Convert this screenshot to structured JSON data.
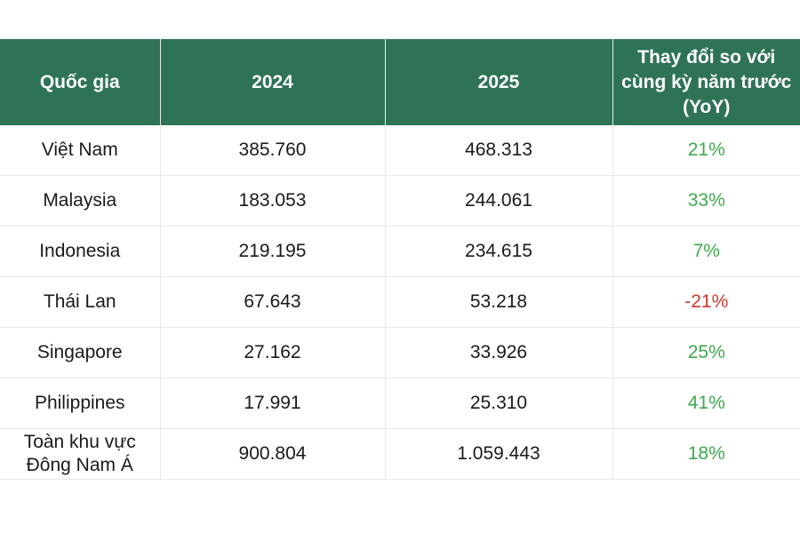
{
  "table": {
    "headers": {
      "country": "Quốc gia",
      "y2024": "2024",
      "y2025": "2025",
      "yoy": "Thay đổi so với cùng kỳ năm trước (YoY)"
    },
    "rows": [
      {
        "country": "Việt Nam",
        "v2024": "385.760",
        "v2025": "468.313",
        "yoy": "21%"
      },
      {
        "country": "Malaysia",
        "v2024": "183.053",
        "v2025": "244.061",
        "yoy": "33%"
      },
      {
        "country": "Indonesia",
        "v2024": "219.195",
        "v2025": "234.615",
        "yoy": "7%"
      },
      {
        "country": "Thái Lan",
        "v2024": "67.643",
        "v2025": "53.218",
        "yoy": "-21%"
      },
      {
        "country": "Singapore",
        "v2024": "27.162",
        "v2025": "33.926",
        "yoy": "25%"
      },
      {
        "country": "Philippines",
        "v2024": "17.991",
        "v2025": "25.310",
        "yoy": "41%"
      },
      {
        "country": "Toàn khu vực Đông Nam Á",
        "v2024": "900.804",
        "v2025": "1.059.443",
        "yoy": "18%"
      }
    ]
  },
  "colors": {
    "header_bg": "#2f7357",
    "positive": "#3daa4d",
    "negative": "#d1392f"
  }
}
